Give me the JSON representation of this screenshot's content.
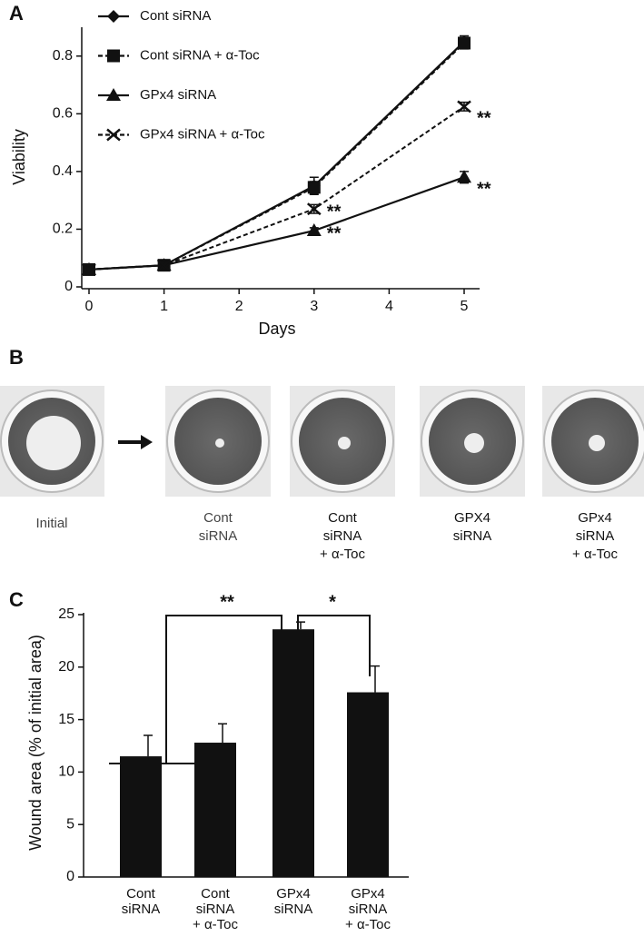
{
  "chart_data": [
    {
      "type": "line",
      "label": "A",
      "x_label": "Days",
      "y_label": "Viability",
      "x": [
        0,
        1,
        3,
        5
      ],
      "xlim": [
        0,
        5
      ],
      "xticks": [
        0,
        1,
        2,
        3,
        4,
        5
      ],
      "ylim": [
        0,
        0.9
      ],
      "yticks": [
        0,
        0.2,
        0.4,
        0.6,
        0.8
      ],
      "series": [
        {
          "name": "Cont siRNA",
          "color": "#111111",
          "dashed": false,
          "marker": "diamond",
          "values": [
            0.06,
            0.075,
            0.35,
            0.85
          ],
          "errors": [
            0.01,
            0.01,
            0.03,
            0.02
          ],
          "point_labels": [
            null,
            null,
            null,
            null
          ]
        },
        {
          "name": "Cont siRNA + α-Toc",
          "color": "#111111",
          "dashed": true,
          "marker": "square",
          "values": [
            0.06,
            0.075,
            0.345,
            0.845
          ],
          "errors": [
            0.01,
            0.01,
            0.02,
            0.02
          ],
          "point_labels": [
            null,
            null,
            null,
            null
          ]
        },
        {
          "name": "GPx4 siRNA",
          "color": "#111111",
          "dashed": false,
          "marker": "triangle",
          "values": [
            0.06,
            0.075,
            0.195,
            0.38
          ],
          "errors": [
            0.01,
            0.01,
            0.01,
            0.02
          ],
          "point_labels": [
            null,
            null,
            "**",
            "**"
          ]
        },
        {
          "name": "GPx4 siRNA + α-Toc",
          "color": "#111111",
          "dashed": true,
          "marker": "x",
          "values": [
            0.06,
            0.075,
            0.27,
            0.625
          ],
          "errors": [
            0.01,
            0.01,
            0.015,
            0.015
          ],
          "point_labels": [
            null,
            null,
            "**",
            "**"
          ]
        }
      ]
    },
    {
      "type": "bar",
      "label": "C",
      "y_label": "Wound area (% of initial area)",
      "categories": [
        [
          "Cont",
          "siRNA"
        ],
        [
          "Cont",
          "siRNA",
          "+ α-Toc"
        ],
        [
          "GPx4",
          "siRNA"
        ],
        [
          "GPx4",
          "siRNA",
          "+ α-Toc"
        ]
      ],
      "values": [
        11.5,
        12.8,
        23.6,
        17.6
      ],
      "errors": [
        2.0,
        1.8,
        0.7,
        2.5
      ],
      "color": "#111111",
      "ylim": [
        0,
        25
      ],
      "yticks": [
        0,
        5,
        10,
        15,
        20,
        25
      ],
      "annotations": [
        "**",
        "*"
      ]
    }
  ],
  "panel_b": {
    "label": "B",
    "captions": [
      [
        "Initial"
      ],
      [
        "Cont",
        "siRNA"
      ],
      [
        "Cont",
        "siRNA",
        "+ α-Toc"
      ],
      [
        "GPX4",
        "siRNA"
      ],
      [
        "GPx4",
        "siRNA",
        "+ α-Toc"
      ]
    ]
  }
}
